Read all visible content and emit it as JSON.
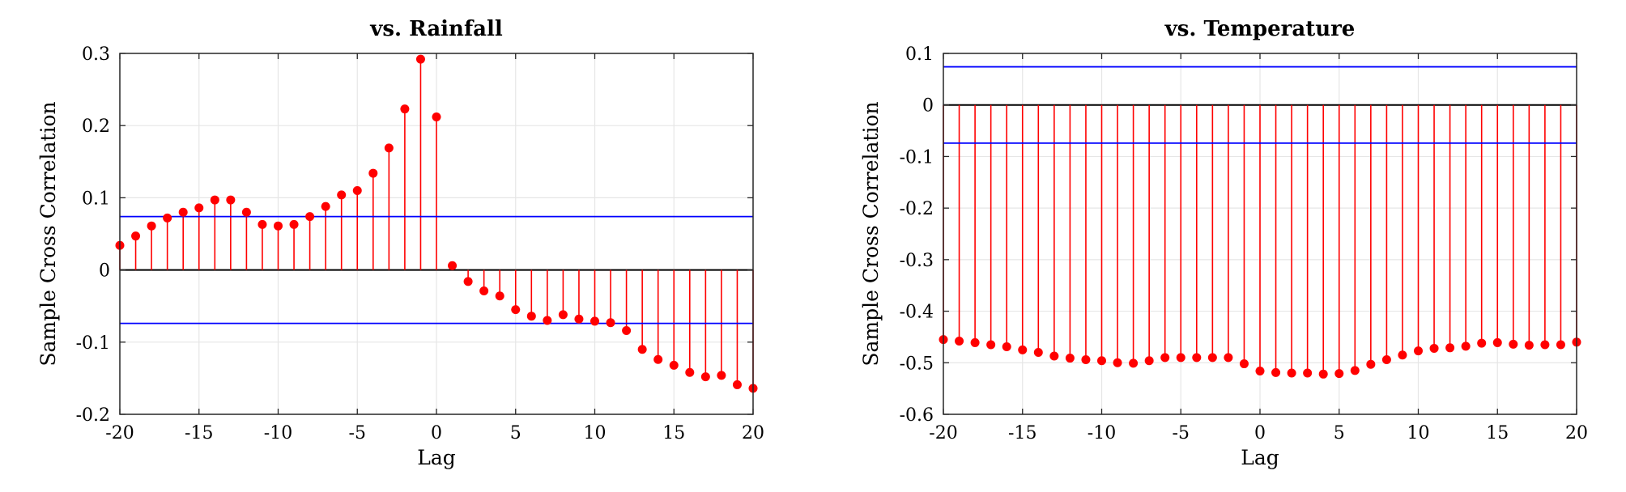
{
  "figure": {
    "background": "#ffffff"
  },
  "colors": {
    "stem": "#ff0000",
    "marker": "#ff0000",
    "bound": "#0000ff",
    "zero": "#000000",
    "grid": "#e6e6e6",
    "axes": "#262626"
  },
  "chart_data": [
    {
      "type": "stem",
      "title": "vs. Rainfall",
      "xlabel": "Lag",
      "ylabel": "Sample Cross Correlation",
      "xlim": [
        -20,
        20
      ],
      "ylim": [
        -0.2,
        0.3
      ],
      "xticks": [
        -20,
        -15,
        -10,
        -5,
        0,
        5,
        10,
        15,
        20
      ],
      "xtick_labels": [
        "-20",
        "-15",
        "-10",
        "-5",
        "0",
        "5",
        "10",
        "15",
        "20"
      ],
      "yticks": [
        -0.2,
        -0.1,
        0,
        0.1,
        0.2,
        0.3
      ],
      "ytick_labels": [
        "-0.2",
        "-0.1",
        "0",
        "0.1",
        "0.2",
        "0.3"
      ],
      "grid": true,
      "bounds": [
        0.074,
        -0.074
      ],
      "x": [
        -20,
        -19,
        -18,
        -17,
        -16,
        -15,
        -14,
        -13,
        -12,
        -11,
        -10,
        -9,
        -8,
        -7,
        -6,
        -5,
        -4,
        -3,
        -2,
        -1,
        0,
        1,
        2,
        3,
        4,
        5,
        6,
        7,
        8,
        9,
        10,
        11,
        12,
        13,
        14,
        15,
        16,
        17,
        18,
        19,
        20
      ],
      "y": [
        0.034,
        0.047,
        0.061,
        0.072,
        0.08,
        0.086,
        0.097,
        0.097,
        0.08,
        0.063,
        0.061,
        0.063,
        0.074,
        0.088,
        0.104,
        0.11,
        0.134,
        0.169,
        0.223,
        0.292,
        0.212,
        0.006,
        -0.016,
        -0.029,
        -0.036,
        -0.055,
        -0.064,
        -0.07,
        -0.062,
        -0.068,
        -0.071,
        -0.073,
        -0.084,
        -0.11,
        -0.124,
        -0.132,
        -0.142,
        -0.148,
        -0.146,
        -0.159,
        -0.164
      ]
    },
    {
      "type": "stem",
      "title": "vs. Temperature",
      "xlabel": "Lag",
      "ylabel": "Sample Cross Correlation",
      "xlim": [
        -20,
        20
      ],
      "ylim": [
        -0.6,
        0.1
      ],
      "xticks": [
        -20,
        -15,
        -10,
        -5,
        0,
        5,
        10,
        15,
        20
      ],
      "xtick_labels": [
        "-20",
        "-15",
        "-10",
        "-5",
        "0",
        "5",
        "10",
        "15",
        "20"
      ],
      "yticks": [
        -0.6,
        -0.5,
        -0.4,
        -0.3,
        -0.2,
        -0.1,
        0,
        0.1
      ],
      "ytick_labels": [
        "-0.6",
        "-0.5",
        "-0.4",
        "-0.3",
        "-0.2",
        "-0.1",
        "0",
        "0.1"
      ],
      "grid": true,
      "bounds": [
        0.074,
        -0.074
      ],
      "x": [
        -20,
        -19,
        -18,
        -17,
        -16,
        -15,
        -14,
        -13,
        -12,
        -11,
        -10,
        -9,
        -8,
        -7,
        -6,
        -5,
        -4,
        -3,
        -2,
        -1,
        0,
        1,
        2,
        3,
        4,
        5,
        6,
        7,
        8,
        9,
        10,
        11,
        12,
        13,
        14,
        15,
        16,
        17,
        18,
        19,
        20
      ],
      "y": [
        -0.455,
        -0.458,
        -0.461,
        -0.465,
        -0.469,
        -0.475,
        -0.48,
        -0.487,
        -0.491,
        -0.494,
        -0.496,
        -0.5,
        -0.501,
        -0.496,
        -0.49,
        -0.49,
        -0.49,
        -0.49,
        -0.49,
        -0.502,
        -0.516,
        -0.519,
        -0.52,
        -0.52,
        -0.522,
        -0.521,
        -0.515,
        -0.503,
        -0.494,
        -0.485,
        -0.477,
        -0.472,
        -0.471,
        -0.468,
        -0.462,
        -0.461,
        -0.464,
        -0.466,
        -0.465,
        -0.465,
        -0.46
      ]
    }
  ]
}
